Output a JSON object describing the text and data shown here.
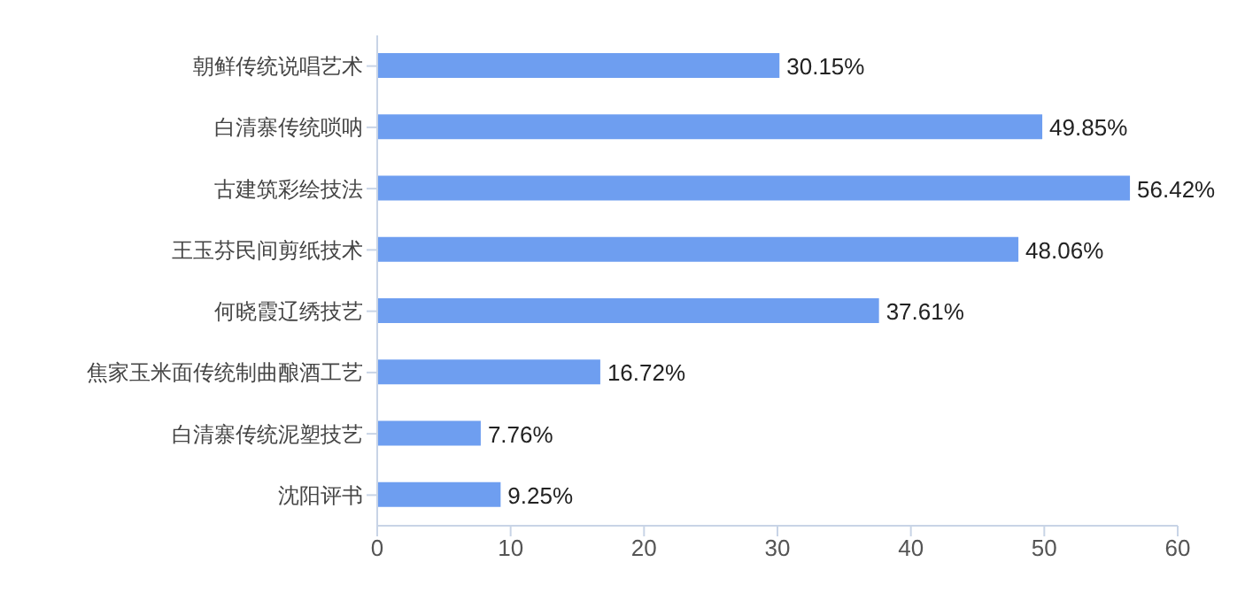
{
  "chart_data": {
    "type": "bar",
    "orientation": "horizontal",
    "categories": [
      "朝鲜传统说唱艺术",
      "白清寨传统唢呐",
      "古建筑彩绘技法",
      "王玉芬民间剪纸技术",
      "何晓霞辽绣技艺",
      "焦家玉米面传统制曲酿酒工艺",
      "白清寨传统泥塑技艺",
      "沈阳评书"
    ],
    "values": [
      30.15,
      49.85,
      56.42,
      48.06,
      37.61,
      16.72,
      7.76,
      9.25
    ],
    "value_labels": [
      "30.15%",
      "49.85%",
      "56.42%",
      "48.06%",
      "37.61%",
      "16.72%",
      "7.76%",
      "9.25%"
    ],
    "color": "#6e9ef0",
    "xlim": [
      0,
      60
    ],
    "xticks": [
      0,
      10,
      20,
      30,
      40,
      50,
      60
    ],
    "grid": false,
    "legend": false
  }
}
